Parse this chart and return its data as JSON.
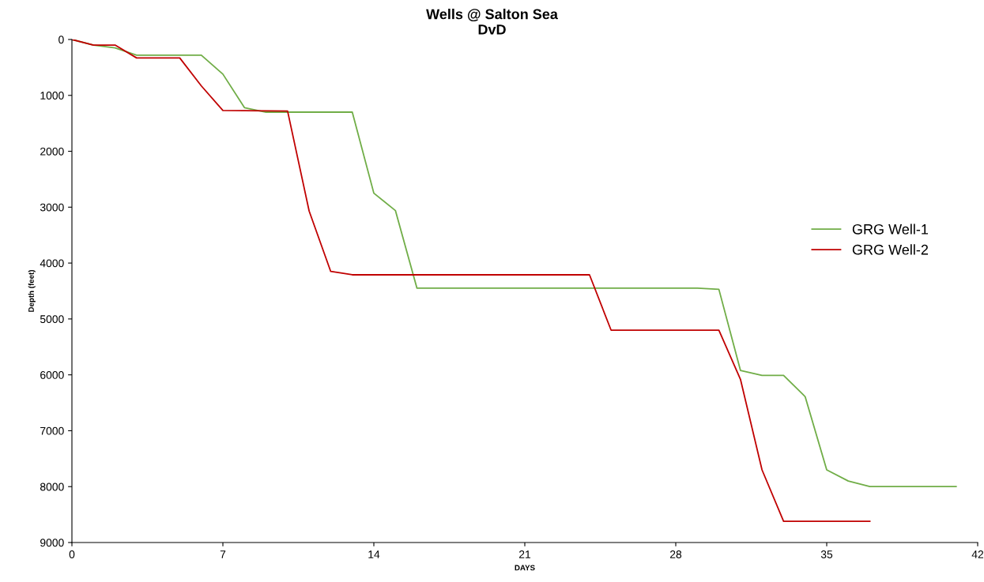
{
  "chart_data": {
    "type": "line",
    "title": "Wells @ Salton Sea\nDvD",
    "xlabel": "DAYS",
    "ylabel": "Depth (feet)",
    "series": [
      {
        "name": "GRG Well-1",
        "color": "#70ad47",
        "x": [
          0,
          1,
          2,
          3,
          6,
          7,
          8,
          9,
          13,
          14,
          15,
          16,
          29,
          30,
          31,
          32,
          33,
          34,
          35,
          36,
          37,
          41
        ],
        "values": [
          0,
          100,
          150,
          280,
          280,
          620,
          1220,
          1300,
          1300,
          2750,
          3060,
          4450,
          4450,
          4470,
          5920,
          6010,
          6010,
          6390,
          7700,
          7900,
          8000,
          8000
        ]
      },
      {
        "name": "GRG Well-2",
        "color": "#c00000",
        "x": [
          0,
          1,
          2,
          3,
          5,
          6,
          7,
          10,
          11,
          12,
          13,
          24,
          25,
          30,
          31,
          32,
          33,
          37
        ],
        "values": [
          0,
          100,
          100,
          330,
          330,
          830,
          1270,
          1280,
          3070,
          4150,
          4210,
          4210,
          5200,
          5200,
          6080,
          7700,
          8620,
          8620
        ]
      }
    ],
    "xlim": [
      0,
      42
    ],
    "xticks": [
      0,
      7,
      14,
      21,
      28,
      35,
      42
    ],
    "ylim": [
      9000,
      0
    ],
    "yticks": [
      0,
      1000,
      2000,
      3000,
      4000,
      5000,
      6000,
      7000,
      8000,
      9000
    ],
    "grid": false,
    "legend": "right",
    "marker": "none",
    "line_style": "solid"
  }
}
